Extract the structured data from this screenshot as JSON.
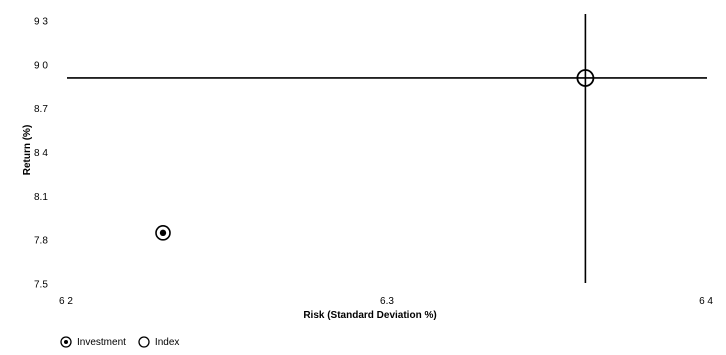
{
  "chart_data": {
    "type": "scatter",
    "title": "",
    "xlabel": "Risk (Standard Deviation %)",
    "ylabel": "Return (%)",
    "xlim": [
      6.2,
      6.4
    ],
    "ylim": [
      7.5,
      9.3
    ],
    "xticks": [
      {
        "value": 6.2,
        "label": "6 2"
      },
      {
        "value": 6.3,
        "label": "6.3"
      },
      {
        "value": 6.4,
        "label": "6 4"
      }
    ],
    "yticks": [
      {
        "value": 9.3,
        "label": "9 3"
      },
      {
        "value": 9.0,
        "label": "9 0"
      },
      {
        "value": 8.7,
        "label": "8.7"
      },
      {
        "value": 8.4,
        "label": "8 4"
      },
      {
        "value": 8.1,
        "label": "8.1"
      },
      {
        "value": 7.8,
        "label": "7.8"
      },
      {
        "value": 7.5,
        "label": "7.5"
      }
    ],
    "series": [
      {
        "name": "Investment",
        "marker": "circle-dot",
        "points": [
          {
            "x": 6.23,
            "y": 7.85
          }
        ]
      },
      {
        "name": "Index",
        "marker": "open-circle",
        "points": [
          {
            "x": 6.362,
            "y": 8.91
          }
        ]
      }
    ],
    "reference_lines": [
      {
        "orientation": "horizontal",
        "y": 8.91
      },
      {
        "orientation": "vertical",
        "x": 6.362
      }
    ],
    "grid": false,
    "legend_position": "bottom-left"
  }
}
